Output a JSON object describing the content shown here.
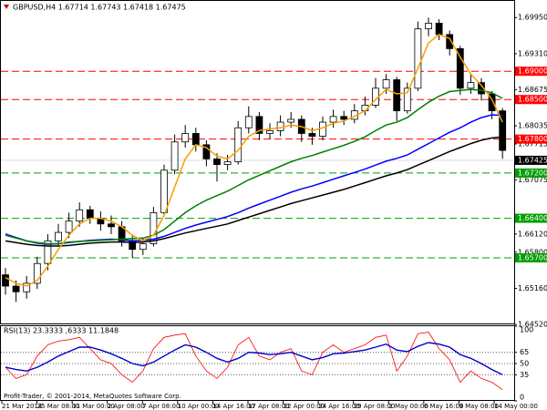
{
  "chart_data": [
    {
      "type": "candlestick",
      "title": "GBPUSD,H4  1.67714 1.67743 1.67418 1.67475",
      "ylim": [
        1.6454,
        1.7026
      ],
      "yticks": [
        {
          "value": 1.6995,
          "label": "1.69950"
        },
        {
          "value": 1.6931,
          "label": "1.69310"
        },
        {
          "value": 1.68675,
          "label": "1.68675"
        },
        {
          "value": 1.68035,
          "label": "1.68035"
        },
        {
          "value": 1.67715,
          "label": "1.67715"
        },
        {
          "value": 1.67075,
          "label": "1.67075"
        },
        {
          "value": 1.6612,
          "label": "1.66120"
        },
        {
          "value": 1.658,
          "label": "1.65800"
        },
        {
          "value": 1.6516,
          "label": "1.65160"
        },
        {
          "value": 1.6452,
          "label": "1.64520"
        }
      ],
      "xtick_labels": [
        "21 Mar 2014",
        "25 Mar 08:00",
        "31 Mar 00:00",
        "2 Apr 08:00",
        "7 Apr 08:00",
        "10 Apr 00:00",
        "14 Apr 16:00",
        "17 Apr 08:00",
        "22 Apr 00:00",
        "24 Apr 16:00",
        "29 Apr 08:00",
        "2 May 00:00",
        "6 May 16:00",
        "9 May 08:00",
        "14 May 00:00"
      ],
      "open": [
        1.654,
        1.652,
        1.651,
        1.6525,
        1.656,
        1.66,
        1.6615,
        1.6635,
        1.6655,
        1.664,
        1.663,
        1.6625,
        1.66,
        1.6585,
        1.6595,
        1.665,
        1.6725,
        1.6775,
        1.679,
        1.677,
        1.6745,
        1.6735,
        1.674,
        1.68,
        1.682,
        1.679,
        1.6795,
        1.681,
        1.6815,
        1.679,
        1.6785,
        1.681,
        1.682,
        1.6815,
        1.683,
        1.684,
        1.687,
        1.6885,
        1.683,
        1.687,
        1.6975,
        1.6985,
        1.6965,
        1.694,
        1.687,
        1.688,
        1.686,
        1.683
      ],
      "high": [
        1.6552,
        1.653,
        1.6538,
        1.6572,
        1.6612,
        1.663,
        1.665,
        1.6668,
        1.6662,
        1.6652,
        1.6645,
        1.6635,
        1.661,
        1.6605,
        1.666,
        1.6735,
        1.6788,
        1.6805,
        1.68,
        1.6778,
        1.6755,
        1.6752,
        1.6812,
        1.6838,
        1.6828,
        1.6808,
        1.6822,
        1.6828,
        1.6822,
        1.68,
        1.682,
        1.6832,
        1.683,
        1.6842,
        1.6855,
        1.6888,
        1.6895,
        1.689,
        1.688,
        1.6988,
        1.6995,
        1.6992,
        1.6972,
        1.6945,
        1.6895,
        1.6888,
        1.6865,
        1.6835
      ],
      "low": [
        1.6505,
        1.6492,
        1.6498,
        1.6515,
        1.6548,
        1.659,
        1.6605,
        1.6625,
        1.663,
        1.6618,
        1.6612,
        1.659,
        1.657,
        1.6575,
        1.659,
        1.6645,
        1.6718,
        1.6765,
        1.6758,
        1.6732,
        1.6705,
        1.6725,
        1.6735,
        1.679,
        1.6778,
        1.678,
        1.6785,
        1.68,
        1.6775,
        1.677,
        1.6778,
        1.68,
        1.6805,
        1.6808,
        1.6822,
        1.6835,
        1.686,
        1.6812,
        1.6825,
        1.6865,
        1.6962,
        1.6955,
        1.6928,
        1.6858,
        1.686,
        1.6848,
        1.6815,
        1.6745
      ],
      "close": [
        1.652,
        1.651,
        1.6525,
        1.656,
        1.66,
        1.6615,
        1.6635,
        1.6655,
        1.664,
        1.663,
        1.6625,
        1.66,
        1.6585,
        1.6595,
        1.665,
        1.6725,
        1.6775,
        1.679,
        1.677,
        1.6745,
        1.6735,
        1.674,
        1.68,
        1.682,
        1.679,
        1.6795,
        1.681,
        1.6815,
        1.679,
        1.6785,
        1.681,
        1.682,
        1.6815,
        1.683,
        1.684,
        1.687,
        1.6885,
        1.683,
        1.687,
        1.6975,
        1.6985,
        1.6965,
        1.694,
        1.687,
        1.688,
        1.686,
        1.683,
        1.676
      ],
      "series": [
        {
          "color": "#000000",
          "values": [
            1.66,
            1.6597,
            1.6594,
            1.6592,
            1.6591,
            1.6591,
            1.6592,
            1.6594,
            1.6596,
            1.6597,
            1.6598,
            1.6598,
            1.6597,
            1.6598,
            1.66,
            1.6604,
            1.6609,
            1.6614,
            1.6618,
            1.6622,
            1.6626,
            1.663,
            1.6636,
            1.6642,
            1.6648,
            1.6654,
            1.666,
            1.6666,
            1.6671,
            1.6676,
            1.6681,
            1.6686,
            1.6691,
            1.6697,
            1.6703,
            1.6709,
            1.6715,
            1.672,
            1.6726,
            1.6734,
            1.6742,
            1.675,
            1.6758,
            1.6765,
            1.6772,
            1.6778,
            1.6782,
            1.6784
          ]
        },
        {
          "color": "#0000ff",
          "values": [
            1.6612,
            1.6606,
            1.66,
            1.6596,
            1.6594,
            1.6595,
            1.6597,
            1.6599,
            1.6601,
            1.6602,
            1.6603,
            1.6602,
            1.66,
            1.6601,
            1.6603,
            1.6608,
            1.6615,
            1.6622,
            1.6628,
            1.6633,
            1.6638,
            1.6643,
            1.665,
            1.6658,
            1.6665,
            1.6672,
            1.6679,
            1.6686,
            1.6692,
            1.6697,
            1.6703,
            1.6709,
            1.6715,
            1.6721,
            1.6727,
            1.6734,
            1.6741,
            1.6746,
            1.6752,
            1.6762,
            1.6772,
            1.6782,
            1.6792,
            1.68,
            1.681,
            1.6818,
            1.6823,
            1.6822
          ]
        },
        {
          "color": "#008000",
          "values": [
            1.661,
            1.6605,
            1.66,
            1.6597,
            1.6595,
            1.6595,
            1.6598,
            1.6599,
            1.66,
            1.6601,
            1.6602,
            1.6603,
            1.6604,
            1.6605,
            1.661,
            1.662,
            1.6635,
            1.665,
            1.6662,
            1.6672,
            1.668,
            1.6688,
            1.6698,
            1.6708,
            1.6716,
            1.6724,
            1.6732,
            1.674,
            1.6746,
            1.6751,
            1.6757,
            1.6763,
            1.6769,
            1.6776,
            1.6784,
            1.6795,
            1.6805,
            1.681,
            1.6818,
            1.6832,
            1.6845,
            1.6856,
            1.6864,
            1.6866,
            1.6868,
            1.6866,
            1.6862,
            1.6852
          ]
        },
        {
          "color": "#f5a000",
          "values": [
            1.6535,
            1.6525,
            1.652,
            1.653,
            1.6555,
            1.6585,
            1.661,
            1.663,
            1.664,
            1.664,
            1.6635,
            1.6625,
            1.661,
            1.66,
            1.661,
            1.6645,
            1.6695,
            1.6745,
            1.677,
            1.6765,
            1.675,
            1.6745,
            1.676,
            1.6785,
            1.6795,
            1.6798,
            1.68,
            1.6805,
            1.6802,
            1.6795,
            1.68,
            1.6808,
            1.6812,
            1.682,
            1.683,
            1.685,
            1.6868,
            1.686,
            1.6862,
            1.6905,
            1.695,
            1.6965,
            1.6958,
            1.6925,
            1.6895,
            1.6875,
            1.685,
            1.681
          ]
        }
      ],
      "levels": [
        {
          "value": 1.69,
          "label": "1.69000",
          "color": "#ff0000"
        },
        {
          "value": 1.685,
          "label": "1.68500",
          "color": "#ff0000"
        },
        {
          "value": 1.678,
          "label": "1.67800",
          "color": "#ff0000"
        },
        {
          "value": 1.672,
          "label": "1.67200",
          "color": "#00a000"
        },
        {
          "value": 1.664,
          "label": "1.66400",
          "color": "#00a000"
        },
        {
          "value": 1.657,
          "label": "1.65700",
          "color": "#00a000"
        }
      ],
      "current_price": {
        "value": 1.67425,
        "label": "1.67425"
      }
    },
    {
      "type": "line",
      "title": "RSI(13) 23.3333 ,6333 11.1848",
      "note": "Profit-Trader, © 2001-2014, MetaQuotes Software Corp.",
      "ylim": [
        0,
        100
      ],
      "yticks": [
        100,
        65,
        50,
        35,
        0
      ],
      "levels": [
        65,
        50,
        35
      ],
      "series": [
        {
          "color": "#ff0000",
          "values": [
            45,
            30,
            35,
            60,
            75,
            80,
            82,
            85,
            70,
            55,
            50,
            35,
            25,
            40,
            70,
            85,
            88,
            90,
            60,
            40,
            30,
            45,
            75,
            85,
            60,
            55,
            65,
            70,
            40,
            35,
            65,
            75,
            65,
            70,
            75,
            85,
            88,
            40,
            60,
            90,
            92,
            70,
            55,
            25,
            40,
            30,
            25,
            15
          ]
        },
        {
          "color": "#0000cc",
          "values": [
            45,
            42,
            40,
            45,
            52,
            60,
            66,
            72,
            72,
            68,
            63,
            57,
            50,
            47,
            52,
            60,
            68,
            75,
            72,
            65,
            57,
            52,
            57,
            65,
            64,
            62,
            63,
            65,
            60,
            55,
            58,
            63,
            64,
            66,
            68,
            72,
            76,
            68,
            66,
            73,
            78,
            76,
            72,
            62,
            57,
            50,
            42,
            35
          ]
        }
      ]
    }
  ]
}
